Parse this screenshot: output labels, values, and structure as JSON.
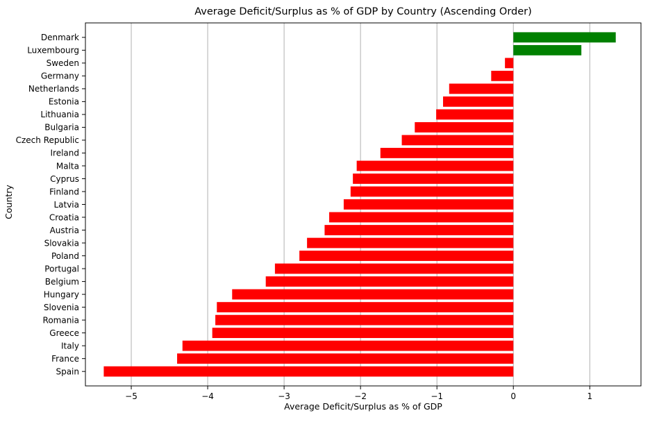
{
  "chart_data": {
    "type": "bar",
    "orientation": "horizontal",
    "title": "Average Deficit/Surplus as % of GDP by Country (Ascending Order)",
    "xlabel": "Average Deficit/Surplus as % of GDP",
    "ylabel": "Country",
    "xlim": [
      -5.6,
      1.67
    ],
    "xticks": [
      -5,
      -4,
      -3,
      -2,
      -1,
      0,
      1
    ],
    "xtick_labels": [
      "−5",
      "−4",
      "−3",
      "−2",
      "−1",
      "0",
      "1"
    ],
    "grid": "vertical",
    "categories": [
      "Spain",
      "France",
      "Italy",
      "Greece",
      "Romania",
      "Slovenia",
      "Hungary",
      "Belgium",
      "Portugal",
      "Poland",
      "Slovakia",
      "Austria",
      "Croatia",
      "Latvia",
      "Finland",
      "Cyprus",
      "Malta",
      "Ireland",
      "Czech Republic",
      "Bulgaria",
      "Lithuania",
      "Estonia",
      "Netherlands",
      "Germany",
      "Sweden",
      "Luxembourg",
      "Denmark"
    ],
    "values": [
      -5.36,
      -4.4,
      -4.33,
      -3.94,
      -3.9,
      -3.88,
      -3.68,
      -3.24,
      -3.12,
      -2.8,
      -2.7,
      -2.47,
      -2.41,
      -2.22,
      -2.13,
      -2.1,
      -2.05,
      -1.74,
      -1.46,
      -1.29,
      -1.01,
      -0.92,
      -0.84,
      -0.29,
      -0.11,
      0.89,
      1.34
    ],
    "colors": {
      "negative": "#ff0000",
      "positive": "#008000",
      "grid": "#b0b0b0"
    }
  }
}
